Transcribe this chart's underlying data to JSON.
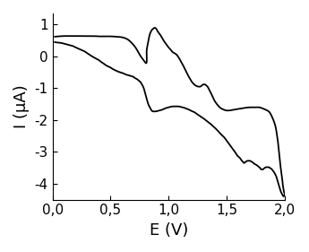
{
  "xlabel": "E (V)",
  "ylabel": "I (μA)",
  "xlim": [
    0.0,
    2.0
  ],
  "ylim": [
    -4.5,
    1.35
  ],
  "xticks": [
    0.0,
    0.5,
    1.0,
    1.5,
    2.0
  ],
  "yticks": [
    -4,
    -3,
    -2,
    -1,
    0,
    1
  ],
  "xticklabels": [
    "0,0",
    "0,5",
    "1,0",
    "1,5",
    "2,0"
  ],
  "yticklabels": [
    "-4",
    "-3",
    "-2",
    "-1",
    "0",
    "1"
  ],
  "line_color": "black",
  "line_width": 1.3,
  "background_color": "white",
  "xlabel_fontsize": 13,
  "ylabel_fontsize": 13,
  "tick_fontsize": 11,
  "cv_forward": [
    [
      0.02,
      0.62
    ],
    [
      0.05,
      0.63
    ],
    [
      0.1,
      0.64
    ],
    [
      0.15,
      0.64
    ],
    [
      0.2,
      0.64
    ],
    [
      0.25,
      0.64
    ],
    [
      0.3,
      0.64
    ],
    [
      0.35,
      0.64
    ],
    [
      0.4,
      0.63
    ],
    [
      0.45,
      0.63
    ],
    [
      0.5,
      0.63
    ],
    [
      0.55,
      0.62
    ],
    [
      0.6,
      0.6
    ],
    [
      0.62,
      0.58
    ],
    [
      0.64,
      0.55
    ],
    [
      0.66,
      0.5
    ],
    [
      0.68,
      0.43
    ],
    [
      0.7,
      0.35
    ],
    [
      0.72,
      0.25
    ],
    [
      0.74,
      0.12
    ],
    [
      0.76,
      0.0
    ],
    [
      0.78,
      -0.1
    ],
    [
      0.79,
      -0.15
    ],
    [
      0.8,
      -0.2
    ],
    [
      0.81,
      0.1
    ],
    [
      0.82,
      0.38
    ],
    [
      0.83,
      0.58
    ],
    [
      0.84,
      0.72
    ],
    [
      0.85,
      0.8
    ],
    [
      0.86,
      0.85
    ],
    [
      0.87,
      0.88
    ],
    [
      0.88,
      0.9
    ],
    [
      0.89,
      0.88
    ],
    [
      0.9,
      0.82
    ],
    [
      0.92,
      0.72
    ],
    [
      0.94,
      0.6
    ],
    [
      0.96,
      0.48
    ],
    [
      0.98,
      0.38
    ],
    [
      1.0,
      0.28
    ],
    [
      1.02,
      0.2
    ],
    [
      1.04,
      0.12
    ],
    [
      1.05,
      0.1
    ],
    [
      1.06,
      0.08
    ],
    [
      1.07,
      0.05
    ],
    [
      1.08,
      0.0
    ],
    [
      1.09,
      -0.05
    ],
    [
      1.1,
      -0.12
    ],
    [
      1.12,
      -0.25
    ],
    [
      1.14,
      -0.4
    ],
    [
      1.16,
      -0.55
    ],
    [
      1.18,
      -0.68
    ],
    [
      1.2,
      -0.8
    ],
    [
      1.22,
      -0.88
    ],
    [
      1.24,
      -0.93
    ],
    [
      1.26,
      -0.95
    ],
    [
      1.27,
      -0.95
    ],
    [
      1.28,
      -0.93
    ],
    [
      1.29,
      -0.9
    ],
    [
      1.3,
      -0.88
    ],
    [
      1.31,
      -0.88
    ],
    [
      1.32,
      -0.9
    ],
    [
      1.33,
      -0.93
    ],
    [
      1.34,
      -0.98
    ],
    [
      1.35,
      -1.05
    ],
    [
      1.36,
      -1.12
    ],
    [
      1.38,
      -1.28
    ],
    [
      1.4,
      -1.42
    ],
    [
      1.42,
      -1.52
    ],
    [
      1.44,
      -1.6
    ],
    [
      1.46,
      -1.65
    ],
    [
      1.48,
      -1.68
    ],
    [
      1.5,
      -1.7
    ],
    [
      1.52,
      -1.7
    ],
    [
      1.55,
      -1.68
    ],
    [
      1.6,
      -1.65
    ],
    [
      1.65,
      -1.62
    ],
    [
      1.7,
      -1.6
    ],
    [
      1.75,
      -1.6
    ],
    [
      1.78,
      -1.6
    ],
    [
      1.8,
      -1.62
    ],
    [
      1.82,
      -1.65
    ],
    [
      1.85,
      -1.7
    ],
    [
      1.88,
      -1.82
    ],
    [
      1.9,
      -1.98
    ],
    [
      1.92,
      -2.2
    ],
    [
      1.93,
      -2.4
    ],
    [
      1.94,
      -2.65
    ],
    [
      1.95,
      -3.0
    ],
    [
      1.96,
      -3.35
    ],
    [
      1.97,
      -3.65
    ],
    [
      1.975,
      -3.8
    ],
    [
      1.98,
      -3.9
    ]
  ],
  "cv_backward": [
    [
      1.98,
      -3.9
    ],
    [
      1.982,
      -4.0
    ],
    [
      1.985,
      -4.08
    ],
    [
      1.988,
      -4.15
    ],
    [
      1.99,
      -4.2
    ],
    [
      1.992,
      -4.25
    ],
    [
      1.995,
      -4.28
    ],
    [
      1.998,
      -4.3
    ],
    [
      2.0,
      -4.32
    ],
    [
      1.998,
      -4.35
    ],
    [
      1.995,
      -4.38
    ],
    [
      1.99,
      -4.4
    ],
    [
      1.985,
      -4.38
    ],
    [
      1.98,
      -4.35
    ],
    [
      1.97,
      -4.28
    ],
    [
      1.96,
      -4.18
    ],
    [
      1.95,
      -4.05
    ],
    [
      1.94,
      -3.92
    ],
    [
      1.93,
      -3.8
    ],
    [
      1.92,
      -3.72
    ],
    [
      1.91,
      -3.65
    ],
    [
      1.9,
      -3.6
    ],
    [
      1.89,
      -3.55
    ],
    [
      1.88,
      -3.52
    ],
    [
      1.87,
      -3.5
    ],
    [
      1.86,
      -3.48
    ],
    [
      1.85,
      -3.48
    ],
    [
      1.84,
      -3.48
    ],
    [
      1.83,
      -3.5
    ],
    [
      1.82,
      -3.52
    ],
    [
      1.81,
      -3.55
    ],
    [
      1.8,
      -3.55
    ],
    [
      1.79,
      -3.52
    ],
    [
      1.78,
      -3.48
    ],
    [
      1.77,
      -3.45
    ],
    [
      1.76,
      -3.42
    ],
    [
      1.75,
      -3.4
    ],
    [
      1.73,
      -3.35
    ],
    [
      1.72,
      -3.32
    ],
    [
      1.71,
      -3.3
    ],
    [
      1.7,
      -3.28
    ],
    [
      1.69,
      -3.28
    ],
    [
      1.68,
      -3.28
    ],
    [
      1.67,
      -3.3
    ],
    [
      1.66,
      -3.32
    ],
    [
      1.65,
      -3.35
    ],
    [
      1.64,
      -3.32
    ],
    [
      1.63,
      -3.28
    ],
    [
      1.62,
      -3.22
    ],
    [
      1.61,
      -3.18
    ],
    [
      1.6,
      -3.15
    ],
    [
      1.58,
      -3.05
    ],
    [
      1.56,
      -2.95
    ],
    [
      1.54,
      -2.85
    ],
    [
      1.52,
      -2.75
    ],
    [
      1.5,
      -2.65
    ],
    [
      1.48,
      -2.55
    ],
    [
      1.46,
      -2.48
    ],
    [
      1.44,
      -2.4
    ],
    [
      1.42,
      -2.32
    ],
    [
      1.4,
      -2.25
    ],
    [
      1.38,
      -2.18
    ],
    [
      1.36,
      -2.12
    ],
    [
      1.34,
      -2.06
    ],
    [
      1.32,
      -2.0
    ],
    [
      1.3,
      -1.95
    ],
    [
      1.28,
      -1.9
    ],
    [
      1.26,
      -1.85
    ],
    [
      1.24,
      -1.8
    ],
    [
      1.22,
      -1.75
    ],
    [
      1.2,
      -1.72
    ],
    [
      1.18,
      -1.68
    ],
    [
      1.16,
      -1.65
    ],
    [
      1.14,
      -1.62
    ],
    [
      1.12,
      -1.6
    ],
    [
      1.1,
      -1.58
    ],
    [
      1.08,
      -1.57
    ],
    [
      1.06,
      -1.57
    ],
    [
      1.04,
      -1.57
    ],
    [
      1.02,
      -1.58
    ],
    [
      1.0,
      -1.6
    ],
    [
      0.98,
      -1.62
    ],
    [
      0.96,
      -1.65
    ],
    [
      0.94,
      -1.68
    ],
    [
      0.92,
      -1.7
    ],
    [
      0.9,
      -1.72
    ],
    [
      0.88,
      -1.73
    ],
    [
      0.87,
      -1.73
    ],
    [
      0.86,
      -1.72
    ],
    [
      0.85,
      -1.68
    ],
    [
      0.84,
      -1.62
    ],
    [
      0.83,
      -1.55
    ],
    [
      0.82,
      -1.45
    ],
    [
      0.81,
      -1.32
    ],
    [
      0.8,
      -1.18
    ],
    [
      0.79,
      -1.05
    ],
    [
      0.78,
      -0.95
    ],
    [
      0.77,
      -0.88
    ],
    [
      0.76,
      -0.82
    ],
    [
      0.75,
      -0.78
    ],
    [
      0.74,
      -0.75
    ],
    [
      0.73,
      -0.72
    ],
    [
      0.72,
      -0.7
    ],
    [
      0.71,
      -0.68
    ],
    [
      0.7,
      -0.65
    ],
    [
      0.68,
      -0.62
    ],
    [
      0.66,
      -0.6
    ],
    [
      0.64,
      -0.58
    ],
    [
      0.62,
      -0.55
    ],
    [
      0.6,
      -0.52
    ],
    [
      0.58,
      -0.5
    ],
    [
      0.56,
      -0.47
    ],
    [
      0.54,
      -0.44
    ],
    [
      0.52,
      -0.4
    ],
    [
      0.5,
      -0.35
    ],
    [
      0.48,
      -0.32
    ],
    [
      0.45,
      -0.25
    ],
    [
      0.42,
      -0.18
    ],
    [
      0.4,
      -0.12
    ],
    [
      0.38,
      -0.08
    ],
    [
      0.35,
      -0.02
    ],
    [
      0.32,
      0.05
    ],
    [
      0.3,
      0.1
    ],
    [
      0.28,
      0.15
    ],
    [
      0.25,
      0.2
    ],
    [
      0.22,
      0.25
    ],
    [
      0.2,
      0.28
    ],
    [
      0.18,
      0.32
    ],
    [
      0.15,
      0.35
    ],
    [
      0.12,
      0.38
    ],
    [
      0.1,
      0.4
    ],
    [
      0.08,
      0.42
    ],
    [
      0.05,
      0.43
    ],
    [
      0.03,
      0.44
    ],
    [
      0.02,
      0.45
    ]
  ]
}
